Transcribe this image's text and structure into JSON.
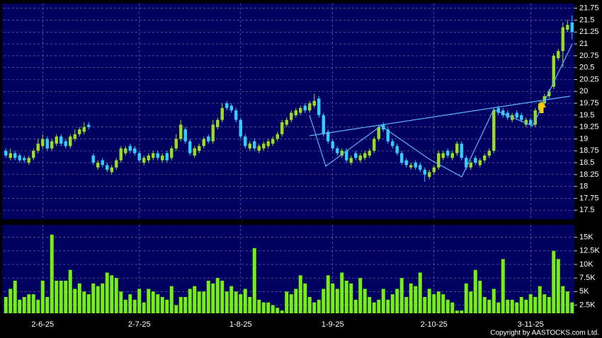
{
  "chart_data": [
    {
      "type": "candlestick",
      "categories": [
        null,
        null,
        null,
        null,
        null,
        null,
        null,
        null,
        "2-6-25",
        null,
        null,
        null,
        null,
        null,
        null,
        null,
        null,
        null,
        null,
        null,
        null,
        null,
        null,
        null,
        null,
        null,
        null,
        null,
        null,
        "2-7-25",
        null,
        null,
        null,
        null,
        null,
        null,
        null,
        null,
        null,
        null,
        null,
        null,
        null,
        null,
        null,
        null,
        null,
        null,
        null,
        null,
        null,
        "1-8-25",
        null,
        null,
        null,
        null,
        null,
        null,
        null,
        null,
        null,
        null,
        null,
        null,
        null,
        null,
        null,
        null,
        null,
        null,
        null,
        "1-9-25",
        null,
        null,
        null,
        null,
        null,
        null,
        null,
        null,
        null,
        null,
        null,
        null,
        null,
        null,
        null,
        null,
        null,
        null,
        null,
        null,
        null,
        "2-10-25",
        null,
        null,
        null,
        null,
        null,
        null,
        null,
        null,
        null,
        null,
        null,
        null,
        null,
        null,
        null,
        null,
        null,
        null,
        null,
        null,
        "3-11-25",
        null,
        null,
        null,
        null,
        null,
        null,
        null,
        null,
        null
      ],
      "open": [
        18.75,
        18.6,
        18.7,
        18.65,
        18.6,
        18.5,
        18.6,
        18.75,
        18.85,
        19.0,
        18.8,
        18.9,
        19.05,
        18.95,
        18.85,
        19.0,
        19.1,
        19.15,
        19.3,
        18.65,
        18.4,
        18.55,
        18.45,
        18.3,
        18.4,
        18.55,
        18.7,
        18.85,
        18.8,
        18.7,
        18.5,
        18.55,
        18.6,
        18.7,
        18.55,
        18.7,
        18.6,
        18.8,
        19.0,
        19.2,
        18.95,
        18.65,
        18.75,
        18.85,
        19.05,
        18.95,
        19.25,
        19.4,
        19.75,
        19.7,
        19.6,
        19.4,
        19.05,
        18.8,
        18.95,
        18.75,
        18.8,
        18.85,
        18.9,
        19.0,
        19.1,
        19.3,
        19.4,
        19.5,
        19.55,
        19.7,
        19.6,
        19.7,
        19.85,
        19.5,
        19.15,
        18.95,
        18.8,
        18.65,
        18.75,
        18.5,
        18.7,
        18.55,
        18.6,
        18.65,
        18.75,
        19.0,
        19.3,
        19.2,
        18.95,
        18.85,
        18.7,
        18.55,
        18.4,
        18.5,
        18.45,
        18.35,
        18.2,
        18.3,
        18.4,
        18.6,
        18.75,
        18.6,
        18.7,
        18.9,
        18.6,
        18.4,
        18.6,
        18.45,
        18.55,
        18.65,
        18.75,
        19.65,
        19.6,
        19.55,
        19.4,
        19.55,
        19.5,
        19.3,
        19.4,
        19.3,
        19.6,
        19.75,
        19.9,
        20.1,
        20.7,
        20.85,
        21.3,
        21.45
      ],
      "high": [
        18.8,
        18.8,
        18.75,
        18.7,
        18.65,
        18.65,
        18.8,
        19.0,
        19.1,
        19.05,
        19.0,
        19.1,
        19.1,
        19.0,
        19.1,
        19.2,
        19.25,
        19.35,
        19.35,
        18.7,
        18.55,
        18.6,
        18.5,
        18.45,
        18.6,
        18.85,
        18.85,
        18.9,
        18.85,
        18.75,
        18.65,
        18.7,
        18.75,
        18.75,
        18.7,
        18.75,
        18.85,
        19.1,
        19.4,
        19.25,
        19.0,
        18.85,
        18.9,
        19.05,
        19.1,
        19.4,
        19.45,
        19.75,
        19.8,
        19.75,
        19.65,
        19.45,
        19.1,
        18.95,
        19.0,
        18.9,
        18.95,
        19.0,
        19.05,
        19.15,
        19.4,
        19.45,
        19.6,
        19.65,
        19.7,
        19.75,
        19.8,
        19.95,
        19.9,
        19.55,
        19.2,
        19.0,
        18.85,
        18.8,
        18.8,
        18.65,
        18.75,
        18.7,
        18.75,
        18.8,
        19.05,
        19.3,
        19.35,
        19.25,
        19.0,
        18.9,
        18.75,
        18.6,
        18.5,
        18.55,
        18.5,
        18.4,
        18.35,
        18.45,
        18.75,
        18.75,
        18.8,
        18.75,
        18.95,
        18.95,
        18.65,
        18.55,
        18.65,
        18.6,
        18.7,
        18.8,
        19.65,
        19.7,
        19.65,
        19.6,
        19.55,
        19.6,
        19.55,
        19.45,
        19.45,
        19.65,
        19.8,
        19.95,
        20.05,
        20.8,
        20.9,
        21.45,
        21.5,
        21.6
      ],
      "low": [
        18.6,
        18.55,
        18.55,
        18.5,
        18.5,
        18.45,
        18.55,
        18.7,
        18.8,
        18.75,
        18.75,
        18.85,
        18.85,
        18.8,
        18.8,
        18.95,
        19.05,
        19.1,
        19.2,
        18.45,
        18.35,
        18.4,
        18.3,
        18.25,
        18.35,
        18.5,
        18.65,
        18.7,
        18.65,
        18.5,
        18.45,
        18.5,
        18.55,
        18.55,
        18.5,
        18.5,
        18.55,
        18.75,
        18.95,
        18.9,
        18.65,
        18.6,
        18.7,
        18.8,
        18.9,
        18.9,
        19.2,
        19.35,
        19.6,
        19.55,
        19.35,
        19.0,
        18.8,
        18.75,
        18.75,
        18.7,
        18.75,
        18.8,
        18.85,
        18.95,
        19.05,
        19.25,
        19.35,
        19.45,
        19.5,
        19.55,
        19.55,
        19.65,
        19.45,
        19.05,
        18.9,
        18.75,
        18.65,
        18.6,
        18.5,
        18.45,
        18.55,
        18.5,
        18.55,
        18.6,
        18.7,
        18.95,
        19.15,
        18.9,
        18.8,
        18.65,
        18.45,
        18.4,
        18.35,
        18.35,
        18.3,
        18.1,
        18.15,
        18.25,
        18.35,
        18.55,
        18.6,
        18.55,
        18.65,
        18.55,
        18.35,
        18.35,
        18.45,
        18.4,
        18.5,
        18.6,
        18.7,
        19.5,
        19.45,
        19.4,
        19.35,
        19.4,
        19.35,
        19.25,
        19.25,
        19.25,
        19.55,
        19.7,
        19.85,
        20.05,
        20.65,
        20.5,
        21.25,
        21.1
      ],
      "close": [
        18.65,
        18.7,
        18.6,
        18.55,
        18.55,
        18.6,
        18.75,
        18.9,
        19.0,
        18.8,
        18.95,
        19.05,
        18.9,
        18.85,
        19.05,
        19.1,
        19.2,
        19.25,
        19.25,
        18.5,
        18.5,
        18.45,
        18.35,
        18.4,
        18.55,
        18.8,
        18.8,
        18.75,
        18.7,
        18.55,
        18.6,
        18.65,
        18.7,
        18.6,
        18.65,
        18.55,
        18.8,
        19.0,
        19.3,
        18.95,
        18.7,
        18.8,
        18.85,
        19.0,
        18.95,
        19.3,
        19.4,
        19.65,
        19.65,
        19.6,
        19.4,
        19.05,
        18.85,
        18.9,
        18.8,
        18.85,
        18.9,
        18.95,
        19.0,
        19.1,
        19.35,
        19.4,
        19.55,
        19.6,
        19.65,
        19.6,
        19.75,
        19.8,
        19.5,
        19.1,
        18.95,
        18.8,
        18.7,
        18.75,
        18.55,
        18.6,
        18.6,
        18.65,
        18.7,
        18.75,
        19.0,
        19.25,
        19.2,
        18.95,
        18.85,
        18.7,
        18.5,
        18.45,
        18.45,
        18.4,
        18.35,
        18.25,
        18.3,
        18.4,
        18.7,
        18.7,
        18.65,
        18.7,
        18.9,
        18.6,
        18.4,
        18.5,
        18.5,
        18.55,
        18.65,
        18.75,
        19.6,
        19.55,
        19.5,
        19.45,
        19.5,
        19.45,
        19.4,
        19.4,
        19.3,
        19.6,
        19.75,
        19.9,
        20.0,
        20.75,
        20.85,
        21.35,
        21.4,
        21.25
      ],
      "up_color": "#99dd22",
      "down_color": "#33ccff",
      "ylim": [
        17.31,
        21.85
      ],
      "yticks": [
        17.5,
        17.75,
        18,
        18.25,
        18.5,
        18.75,
        19,
        19.25,
        19.5,
        19.75,
        20,
        20.25,
        20.5,
        20.75,
        21,
        21.25,
        21.5,
        21.75
      ],
      "grid": true
    },
    {
      "type": "bar",
      "values": [
        4000,
        5500,
        7000,
        3500,
        4000,
        4500,
        4500,
        3500,
        7000,
        4000,
        15500,
        7000,
        7000,
        7000,
        9000,
        5500,
        6500,
        5000,
        4500,
        6500,
        6000,
        6500,
        8500,
        8000,
        7500,
        5000,
        3500,
        4500,
        3500,
        5500,
        3000,
        5500,
        5000,
        4500,
        4000,
        3500,
        6000,
        2500,
        4000,
        4000,
        5500,
        6000,
        5000,
        5000,
        7000,
        6500,
        7500,
        7000,
        5000,
        6000,
        5000,
        4500,
        5500,
        4000,
        13000,
        3500,
        3000,
        3000,
        2500,
        2000,
        1500,
        5000,
        4500,
        5500,
        8000,
        6500,
        4000,
        3000,
        3500,
        5500,
        8000,
        6500,
        5500,
        8500,
        7000,
        6500,
        3500,
        7500,
        5500,
        4000,
        3000,
        3500,
        5500,
        3500,
        4500,
        5500,
        7500,
        4000,
        6500,
        6000,
        8500,
        4000,
        5500,
        4500,
        5000,
        4500,
        3500,
        3000,
        1500,
        1500,
        6500,
        5000,
        9000,
        7000,
        4000,
        3500,
        5500,
        3000,
        11000,
        3500,
        3500,
        3000,
        4000,
        3500,
        4500,
        4000,
        6000,
        4500,
        4000,
        12500,
        11000,
        6000,
        5000,
        3000
      ],
      "color": "#77ee11",
      "ylim": [
        1000,
        17300
      ],
      "yticks": [
        {
          "value": 2500,
          "label": "2.5K"
        },
        {
          "value": 5000,
          "label": "5K"
        },
        {
          "value": 7500,
          "label": "7.5K"
        },
        {
          "value": 10000,
          "label": "10K"
        },
        {
          "value": 12500,
          "label": "12.5K"
        },
        {
          "value": 15000,
          "label": "15K"
        }
      ],
      "grid": true
    }
  ],
  "footer": "Copyright by AASTOCKS.com Ltd."
}
